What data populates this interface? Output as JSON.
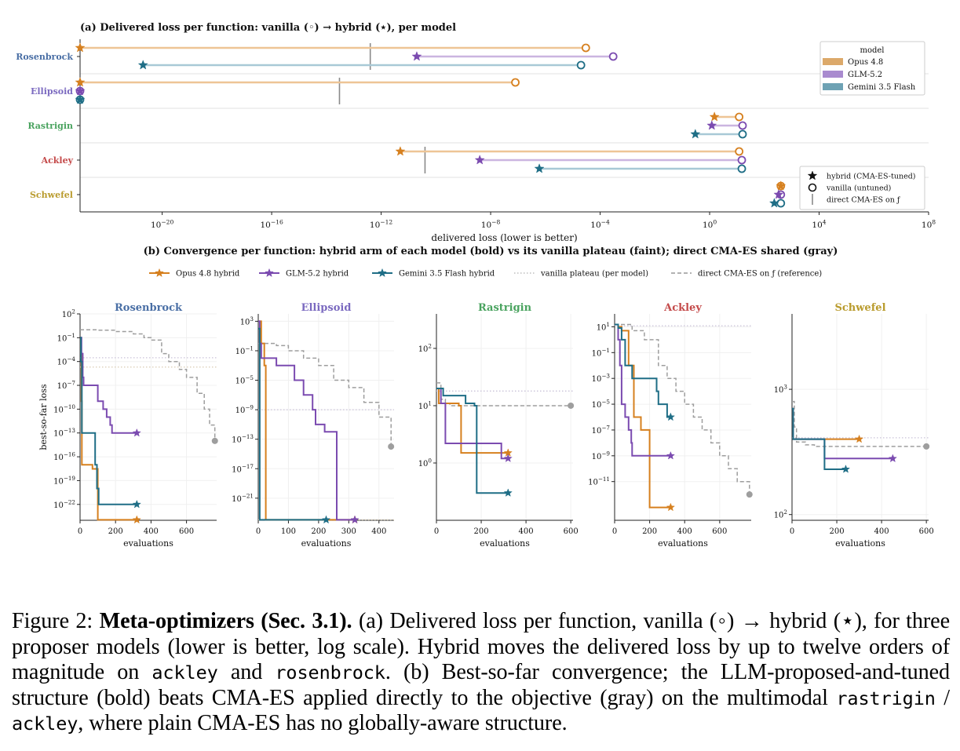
{
  "colors": {
    "opus": "#d6801f",
    "glm": "#7b4bb0",
    "gemini": "#1f6e86",
    "opus_light": "#eec596",
    "glm_light": "#cbb5e0",
    "gemini_light": "#a8c9d6",
    "direct": "#9a9a9a",
    "rosenbrock": "#4a6fa5",
    "ellipsoid": "#7b6ac0",
    "rastrigin": "#4aa35f",
    "ackley": "#c44a4a",
    "schwefel": "#b99b2d"
  },
  "chart_data": [
    {
      "type": "dumbbell",
      "title": "(a) Delivered loss per function: vanilla (◦) → hybrid (⋆), per model",
      "xlabel": "delivered loss  (lower is better)",
      "xscale": "log",
      "xlim": [
        1e-23,
        100000000.0
      ],
      "xticks": [
        1e-20,
        1e-16,
        1e-12,
        1e-08,
        0.0001,
        1,
        10000.0,
        100000000.0
      ],
      "xtick_labels": [
        {
          "base": "10",
          "exp": "−20"
        },
        {
          "base": "10",
          "exp": "−16"
        },
        {
          "base": "10",
          "exp": "−12"
        },
        {
          "base": "10",
          "exp": "−8"
        },
        {
          "base": "10",
          "exp": "−4"
        },
        {
          "base": "10",
          "exp": "0"
        },
        {
          "base": "10",
          "exp": "4"
        },
        {
          "base": "10",
          "exp": "8"
        }
      ],
      "categories": [
        "Rosenbrock",
        "Ellipsoid",
        "Rastrigin",
        "Ackley",
        "Schwefel"
      ],
      "series": [
        {
          "name": "Opus 4.8",
          "color_key": "opus",
          "vanilla": [
            3e-05,
            8e-08,
            12,
            12,
            400
          ],
          "hybrid": [
            1e-23,
            1e-23,
            1.5,
            5e-12,
            400
          ]
        },
        {
          "name": "GLM-5.2",
          "color_key": "glm",
          "vanilla": [
            0.0003,
            1e-23,
            16,
            15,
            400
          ],
          "hybrid": [
            2e-11,
            1e-23,
            1.2,
            4e-09,
            330
          ]
        },
        {
          "name": "Gemini 3.5 Flash",
          "color_key": "gemini",
          "vanilla": [
            2e-05,
            1e-23,
            16,
            15,
            400
          ],
          "hybrid": [
            2e-21,
            1e-23,
            0.3,
            6e-07,
            230
          ]
        }
      ],
      "direct": [
        4e-13,
        3e-14,
        null,
        4e-11,
        null
      ],
      "legend_title": "model",
      "legend_position": "top-right",
      "marker_legend": [
        {
          "symbol": "★",
          "label": "hybrid (CMA-ES-tuned)"
        },
        {
          "symbol": "○",
          "label": "vanilla (untuned)"
        },
        {
          "symbol": "|",
          "label": "direct CMA-ES on ƒ"
        }
      ],
      "marker_legend_position": "bottom-right"
    },
    {
      "type": "line",
      "title": "(b) Convergence per function: hybrid arm of each model (bold) vs its vanilla plateau (faint); direct CMA-ES shared (gray)",
      "legend": [
        {
          "label": "Opus 4.8 hybrid",
          "style": "opus"
        },
        {
          "label": "GLM-5.2 hybrid",
          "style": "glm"
        },
        {
          "label": "Gemini 3.5 Flash hybrid",
          "style": "gemini"
        },
        {
          "label": "vanilla plateau (per model)",
          "style": "dotted"
        },
        {
          "label": "direct CMA-ES on ƒ (reference)",
          "style": "dashed"
        }
      ],
      "ylabel": "best-so-far loss",
      "xlabel": "evaluations",
      "panels": [
        {
          "name": "Rosenbrock",
          "color_key": "rosenbrock",
          "xlim": [
            0,
            770
          ],
          "xticks": [
            0,
            200,
            400,
            600
          ],
          "ylim": [
            1e-24,
            100
          ],
          "yticks": [
            {
              "v": 100,
              "e": "2"
            },
            {
              "v": 0.1,
              "e": "−1"
            },
            {
              "v": 0.0001,
              "e": "−4"
            },
            {
              "v": 1e-07,
              "e": "−7"
            },
            {
              "v": 1e-10,
              "e": "−10"
            },
            {
              "v": 1e-13,
              "e": "−13"
            },
            {
              "v": 1e-16,
              "e": "−16"
            },
            {
              "v": 1e-19,
              "e": "−19"
            },
            {
              "v": 1e-22,
              "e": "−22"
            }
          ],
          "opus": [
            [
              0,
              0.1
            ],
            [
              5,
              0.001
            ],
            [
              8,
              1e-09
            ],
            [
              10,
              1e-17
            ],
            [
              60,
              1e-17
            ],
            [
              70,
              3e-18
            ],
            [
              95,
              3e-18
            ],
            [
              100,
              1e-24
            ],
            [
              320,
              1e-24
            ]
          ],
          "glm": [
            [
              0,
              0.1
            ],
            [
              8,
              0.001
            ],
            [
              15,
              1e-06
            ],
            [
              20,
              1e-07
            ],
            [
              90,
              1e-07
            ],
            [
              100,
              1e-09
            ],
            [
              110,
              1e-09
            ],
            [
              130,
              1e-10
            ],
            [
              150,
              1e-11
            ],
            [
              170,
              1e-12
            ],
            [
              180,
              1e-13
            ],
            [
              320,
              1e-13
            ]
          ],
          "gemini": [
            [
              0,
              0.1
            ],
            [
              5,
              0.0001
            ],
            [
              10,
              1e-13
            ],
            [
              80,
              1e-13
            ],
            [
              85,
              1e-17
            ],
            [
              95,
              1e-20
            ],
            [
              105,
              1e-22
            ],
            [
              320,
              1e-22
            ]
          ],
          "plateaus": [
            0.0003,
            2e-05
          ],
          "direct": [
            [
              0,
              1
            ],
            [
              100,
              0.9
            ],
            [
              200,
              0.6
            ],
            [
              300,
              0.3
            ],
            [
              360,
              0.1
            ],
            [
              400,
              0.05
            ],
            [
              460,
              0.001
            ],
            [
              500,
              0.0001
            ],
            [
              560,
              1e-05
            ],
            [
              600,
              1e-06
            ],
            [
              660,
              1e-08
            ],
            [
              700,
              1e-10
            ],
            [
              730,
              1e-12
            ],
            [
              760,
              1e-14
            ]
          ]
        },
        {
          "name": "Ellipsoid",
          "color_key": "ellipsoid",
          "xlim": [
            0,
            450
          ],
          "xticks": [
            0,
            100,
            200,
            300,
            400
          ],
          "ylim": [
            1e-24,
            10000.0
          ],
          "yticks": [
            {
              "v": 1000,
              "e": "3"
            },
            {
              "v": 0.1,
              "e": "−1"
            },
            {
              "v": 1e-05,
              "e": "−5"
            },
            {
              "v": 1e-09,
              "e": "−9"
            },
            {
              "v": 1e-13,
              "e": "−13"
            },
            {
              "v": 1e-17,
              "e": "−17"
            },
            {
              "v": 1e-21,
              "e": "−21"
            }
          ],
          "opus": [
            [
              0,
              1000
            ],
            [
              10,
              1
            ],
            [
              20,
              0.001
            ],
            [
              25,
              1e-24
            ],
            [
              320,
              1e-24
            ]
          ],
          "glm": [
            [
              0,
              1000
            ],
            [
              5,
              1
            ],
            [
              10,
              0.01
            ],
            [
              50,
              0.01
            ],
            [
              60,
              0.001
            ],
            [
              110,
              0.001
            ],
            [
              120,
              1e-05
            ],
            [
              150,
              1e-07
            ],
            [
              180,
              1e-09
            ],
            [
              190,
              1e-11
            ],
            [
              220,
              1e-12
            ],
            [
              260,
              1e-24
            ],
            [
              320,
              1e-24
            ]
          ],
          "gemini": [
            [
              0,
              100
            ],
            [
              5,
              1e-24
            ],
            [
              225,
              1e-24
            ]
          ],
          "plateaus": [
            1e-09,
            1e-24
          ],
          "direct": [
            [
              0,
              1
            ],
            [
              60,
              0.5
            ],
            [
              100,
              0.1
            ],
            [
              150,
              0.01
            ],
            [
              200,
              0.001
            ],
            [
              250,
              1e-05
            ],
            [
              300,
              1e-06
            ],
            [
              350,
              1e-08
            ],
            [
              400,
              1e-10
            ],
            [
              440,
              1e-14
            ]
          ]
        },
        {
          "name": "Rastrigin",
          "color_key": "rastrigin",
          "xlim": [
            0,
            610
          ],
          "xticks": [
            0,
            200,
            400,
            600
          ],
          "ylim": [
            0.1,
            400
          ],
          "yticks": [
            {
              "v": 100,
              "e": "2"
            },
            {
              "v": 10,
              "e": "1"
            },
            {
              "v": 1,
              "e": "0"
            }
          ],
          "opus": [
            [
              0,
              20
            ],
            [
              10,
              11
            ],
            [
              50,
              11
            ],
            [
              100,
              10
            ],
            [
              110,
              1.5
            ],
            [
              320,
              1.5
            ]
          ],
          "glm": [
            [
              0,
              20
            ],
            [
              20,
              11
            ],
            [
              40,
              2.2
            ],
            [
              280,
              2.2
            ],
            [
              290,
              1.2
            ],
            [
              320,
              1.2
            ]
          ],
          "gemini": [
            [
              0,
              20
            ],
            [
              30,
              15
            ],
            [
              120,
              15
            ],
            [
              130,
              11
            ],
            [
              170,
              10
            ],
            [
              180,
              0.3
            ],
            [
              320,
              0.3
            ]
          ],
          "plateaus": [
            18
          ],
          "direct": [
            [
              0,
              25
            ],
            [
              20,
              13
            ],
            [
              40,
              11
            ],
            [
              60,
              10
            ],
            [
              600,
              10
            ]
          ]
        },
        {
          "name": "Ackley",
          "color_key": "ackley",
          "xlim": [
            0,
            780
          ],
          "xticks": [
            0,
            200,
            400,
            600
          ],
          "ylim": [
            1e-14,
            100
          ],
          "yticks": [
            {
              "v": 10,
              "e": "1"
            },
            {
              "v": 0.1,
              "e": "−1"
            },
            {
              "v": 0.001,
              "e": "−3"
            },
            {
              "v": 1e-05,
              "e": "−5"
            },
            {
              "v": 1e-07,
              "e": "−7"
            },
            {
              "v": 1e-09,
              "e": "−9"
            },
            {
              "v": 1e-11,
              "e": "−11"
            }
          ],
          "opus": [
            [
              0,
              15
            ],
            [
              20,
              10
            ],
            [
              40,
              5
            ],
            [
              80,
              0.01
            ],
            [
              110,
              1e-06
            ],
            [
              150,
              1e-07
            ],
            [
              190,
              1e-07
            ],
            [
              200,
              1e-13
            ],
            [
              320,
              1e-13
            ]
          ],
          "glm": [
            [
              0,
              15
            ],
            [
              20,
              1
            ],
            [
              30,
              0.01
            ],
            [
              40,
              1e-05
            ],
            [
              60,
              1e-06
            ],
            [
              80,
              1e-07
            ],
            [
              95,
              1e-08
            ],
            [
              100,
              1e-09
            ],
            [
              320,
              1e-09
            ]
          ],
          "gemini": [
            [
              0,
              15
            ],
            [
              20,
              8
            ],
            [
              40,
              1
            ],
            [
              60,
              0.01
            ],
            [
              100,
              0.001
            ],
            [
              230,
              0.001
            ],
            [
              240,
              0.0001
            ],
            [
              250,
              1e-05
            ],
            [
              270,
              1e-05
            ],
            [
              300,
              1e-06
            ],
            [
              320,
              1e-06
            ]
          ],
          "plateaus": [
            12
          ],
          "direct": [
            [
              0,
              15
            ],
            [
              100,
              5
            ],
            [
              170,
              1
            ],
            [
              250,
              0.01
            ],
            [
              300,
              0.001
            ],
            [
              350,
              0.0001
            ],
            [
              400,
              1e-05
            ],
            [
              450,
              1e-06
            ],
            [
              500,
              1e-07
            ],
            [
              550,
              1e-08
            ],
            [
              600,
              1e-09
            ],
            [
              650,
              1e-10
            ],
            [
              700,
              1e-11
            ],
            [
              770,
              1e-12
            ]
          ]
        },
        {
          "name": "Schwefel",
          "color_key": "schwefel",
          "xlim": [
            0,
            610
          ],
          "xticks": [
            0,
            200,
            400,
            600
          ],
          "ylim": [
            90,
            4000
          ],
          "yticks": [
            {
              "v": 1000,
              "e": "3"
            },
            {
              "v": 100,
              "e": "2"
            }
          ],
          "opus": [
            [
              0,
              700
            ],
            [
              5,
              400
            ],
            [
              300,
              400
            ]
          ],
          "glm": [
            [
              0,
              700
            ],
            [
              5,
              400
            ],
            [
              140,
              400
            ],
            [
              145,
              280
            ],
            [
              450,
              280
            ]
          ],
          "gemini": [
            [
              0,
              700
            ],
            [
              5,
              400
            ],
            [
              140,
              400
            ],
            [
              145,
              230
            ],
            [
              240,
              230
            ]
          ],
          "plateaus": [
            410
          ],
          "direct": [
            [
              0,
              800
            ],
            [
              10,
              500
            ],
            [
              20,
              380
            ],
            [
              60,
              360
            ],
            [
              100,
              350
            ],
            [
              600,
              350
            ]
          ]
        }
      ]
    }
  ],
  "caption": {
    "figure_label": "Figure 2: ",
    "bold_title": "Meta-optimizers (Sec. 3.1).",
    "text_1": " (a) Delivered loss per function, vanilla (◦) → hybrid (⋆), for three proposer models (lower is better, log scale). Hybrid moves the delivered loss by up to twelve orders of magnitude on ",
    "code_1": "ackley",
    "text_2": " and ",
    "code_2": "rosenbrock",
    "text_3": ". (b) Best-so-far convergence; the LLM-proposed-and-tuned structure (bold) beats CMA-ES applied directly to the objective (gray) on the multimodal ",
    "code_3": "rastrigin",
    "text_4": " / ",
    "code_4": "ackley",
    "text_5": ", where plain CMA-ES has no globally-aware structure."
  }
}
